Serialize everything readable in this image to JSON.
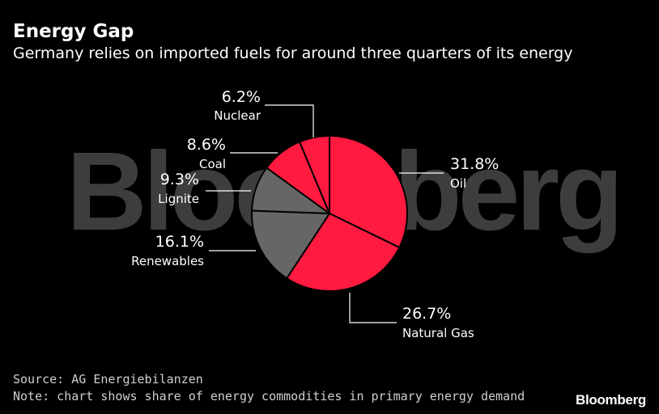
{
  "title": "Energy Gap",
  "subtitle": "Germany relies on imported fuels for around three quarters of its energy",
  "watermark": "Bloomberg",
  "source": "Source: AG Energiebilanzen",
  "note": "Note: chart shows share of energy commodities in primary energy demand",
  "logo": "Bloomberg",
  "colors": {
    "background": "#000000",
    "imported": "#FF1A40",
    "domestic": "#666666",
    "divider": "#000000",
    "leader": "#ffffff"
  },
  "chart_data": {
    "type": "pie",
    "title": "Energy Gap",
    "subtitle": "Germany relies on imported fuels for around three quarters of its energy",
    "start": "12 o'clock",
    "direction": "clockwise",
    "slices": [
      {
        "name": "Oil",
        "value": 31.8,
        "label": "31.8%",
        "group": "imported"
      },
      {
        "name": "Natural Gas",
        "value": 26.7,
        "label": "26.7%",
        "group": "imported"
      },
      {
        "name": "Renewables",
        "value": 16.1,
        "label": "16.1%",
        "group": "domestic"
      },
      {
        "name": "Lignite",
        "value": 9.3,
        "label": "9.3%",
        "group": "domestic"
      },
      {
        "name": "Coal",
        "value": 8.6,
        "label": "8.6%",
        "group": "imported"
      },
      {
        "name": "Nuclear",
        "value": 6.2,
        "label": "6.2%",
        "group": "imported"
      }
    ]
  }
}
